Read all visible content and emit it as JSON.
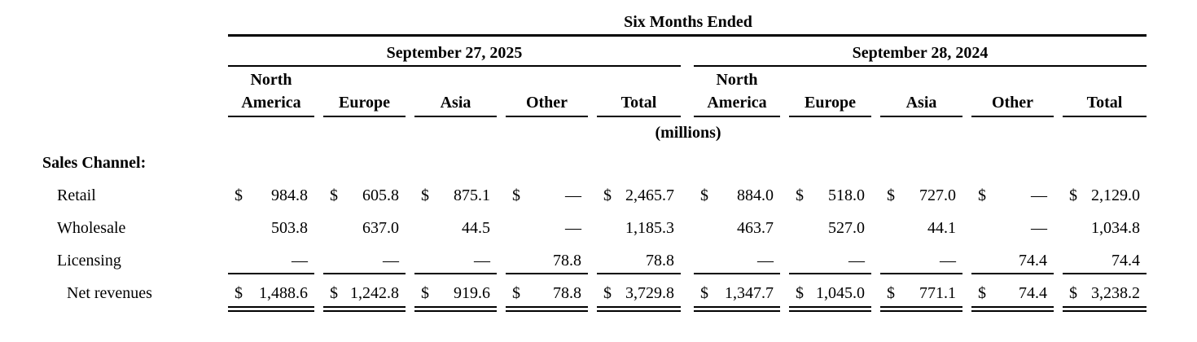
{
  "header": {
    "title": "Six Months Ended",
    "periods": [
      {
        "label": "September 27, 2025",
        "columns": [
          "North America",
          "Europe",
          "Asia",
          "Other",
          "Total"
        ]
      },
      {
        "label": "September 28, 2024",
        "columns": [
          "North America",
          "Europe",
          "Asia",
          "Other",
          "Total"
        ]
      }
    ],
    "unit": "(millions)"
  },
  "section_label": "Sales Channel:",
  "rows": [
    {
      "label": "Retail",
      "cells": [
        {
          "currency": "$",
          "amount": "984.8"
        },
        {
          "currency": "$",
          "amount": "605.8"
        },
        {
          "currency": "$",
          "amount": "875.1"
        },
        {
          "currency": "$",
          "amount": "—"
        },
        {
          "currency": "$",
          "amount": "2,465.7"
        },
        {
          "currency": "$",
          "amount": "884.0"
        },
        {
          "currency": "$",
          "amount": "518.0"
        },
        {
          "currency": "$",
          "amount": "727.0"
        },
        {
          "currency": "$",
          "amount": "—"
        },
        {
          "currency": "$",
          "amount": "2,129.0"
        }
      ]
    },
    {
      "label": "Wholesale",
      "cells": [
        {
          "amount": "503.8"
        },
        {
          "amount": "637.0"
        },
        {
          "amount": "44.5"
        },
        {
          "amount": "—"
        },
        {
          "amount": "1,185.3"
        },
        {
          "amount": "463.7"
        },
        {
          "amount": "527.0"
        },
        {
          "amount": "44.1"
        },
        {
          "amount": "—"
        },
        {
          "amount": "1,034.8"
        }
      ]
    },
    {
      "label": "Licensing",
      "cells": [
        {
          "amount": "—"
        },
        {
          "amount": "—"
        },
        {
          "amount": "—"
        },
        {
          "amount": "78.8"
        },
        {
          "amount": "78.8"
        },
        {
          "amount": "—"
        },
        {
          "amount": "—"
        },
        {
          "amount": "—"
        },
        {
          "amount": "74.4"
        },
        {
          "amount": "74.4"
        }
      ]
    },
    {
      "label": "Net revenues",
      "cells": [
        {
          "currency": "$",
          "amount": "1,488.6"
        },
        {
          "currency": "$",
          "amount": "1,242.8"
        },
        {
          "currency": "$",
          "amount": "919.6"
        },
        {
          "currency": "$",
          "amount": "78.8"
        },
        {
          "currency": "$",
          "amount": "3,729.8"
        },
        {
          "currency": "$",
          "amount": "1,347.7"
        },
        {
          "currency": "$",
          "amount": "1,045.0"
        },
        {
          "currency": "$",
          "amount": "771.1"
        },
        {
          "currency": "$",
          "amount": "74.4"
        },
        {
          "currency": "$",
          "amount": "3,238.2"
        }
      ]
    }
  ]
}
